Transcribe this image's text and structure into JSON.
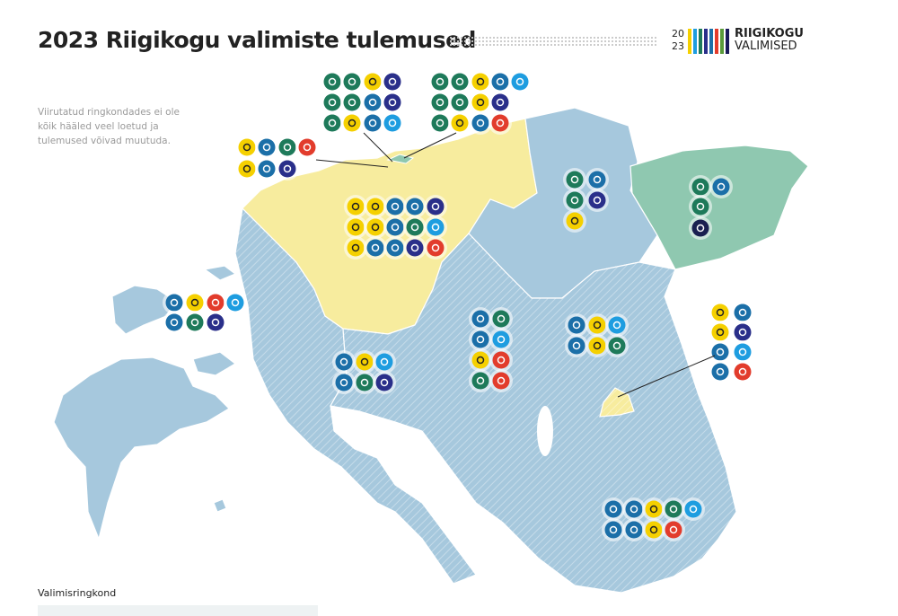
{
  "header": {
    "title": "2023 Riigikogu valimiste tulemused",
    "logo": {
      "year_top": "20",
      "year_bottom": "23",
      "line1": "RIIGIKOGU",
      "line2": "VALIMISED"
    }
  },
  "note": "Viirutatud ringkondades ei ole kõik hääled veel loetud ja tulemused võivad muutuda.",
  "legend": {
    "title": "Valimisringkond"
  }
}
